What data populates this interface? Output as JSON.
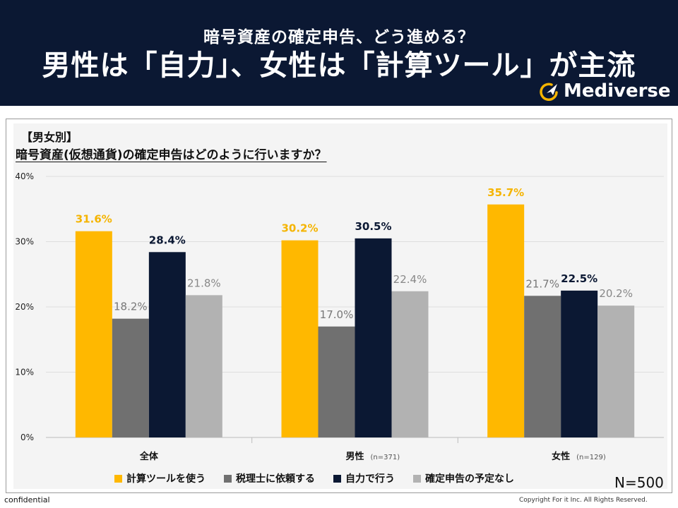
{
  "header": {
    "subtitle": "暗号資産の確定申告、どう進める？",
    "title": "男性は「自力」、女性は「計算ツール」が主流",
    "brand": "Mediverse"
  },
  "panel": {
    "category_title": "【男女別】",
    "question": "暗号資産(仮想通貨)の確定申告はどのように行いますか？"
  },
  "chart_data": {
    "type": "bar",
    "title": "暗号資産(仮想通貨)の確定申告はどのように行いますか？",
    "categories": [
      "全体",
      "男性",
      "女性"
    ],
    "category_notes": [
      "",
      "(n=371)",
      "(n=129)"
    ],
    "series": [
      {
        "name": "計算ツールを使う",
        "values": [
          31.6,
          30.2,
          35.7
        ],
        "color": "#ffb800",
        "label_color": "#f5b400",
        "label_bold": true
      },
      {
        "name": "税理士に依頼する",
        "values": [
          18.2,
          17.0,
          21.7
        ],
        "color": "#707070",
        "label_color": "#777777",
        "label_bold": false
      },
      {
        "name": "自力で行う",
        "values": [
          28.4,
          30.5,
          22.5
        ],
        "color": "#0b1833",
        "label_color": "#0b1833",
        "label_bold": true
      },
      {
        "name": "確定申告の予定なし",
        "values": [
          21.8,
          22.4,
          20.2
        ],
        "color": "#b2b2b2",
        "label_color": "#888888",
        "label_bold": false
      }
    ],
    "y_ticks": [
      0,
      10,
      20,
      30,
      40
    ],
    "y_tick_labels": [
      "0%",
      "10%",
      "20%",
      "30%",
      "40%"
    ],
    "ylim": [
      0,
      40
    ],
    "grid": true,
    "legend_position": "bottom"
  },
  "footer": {
    "n_label": "N=500",
    "confidential": "confidential",
    "copyright": "Copyright For it Inc. All Rights Reserved."
  }
}
